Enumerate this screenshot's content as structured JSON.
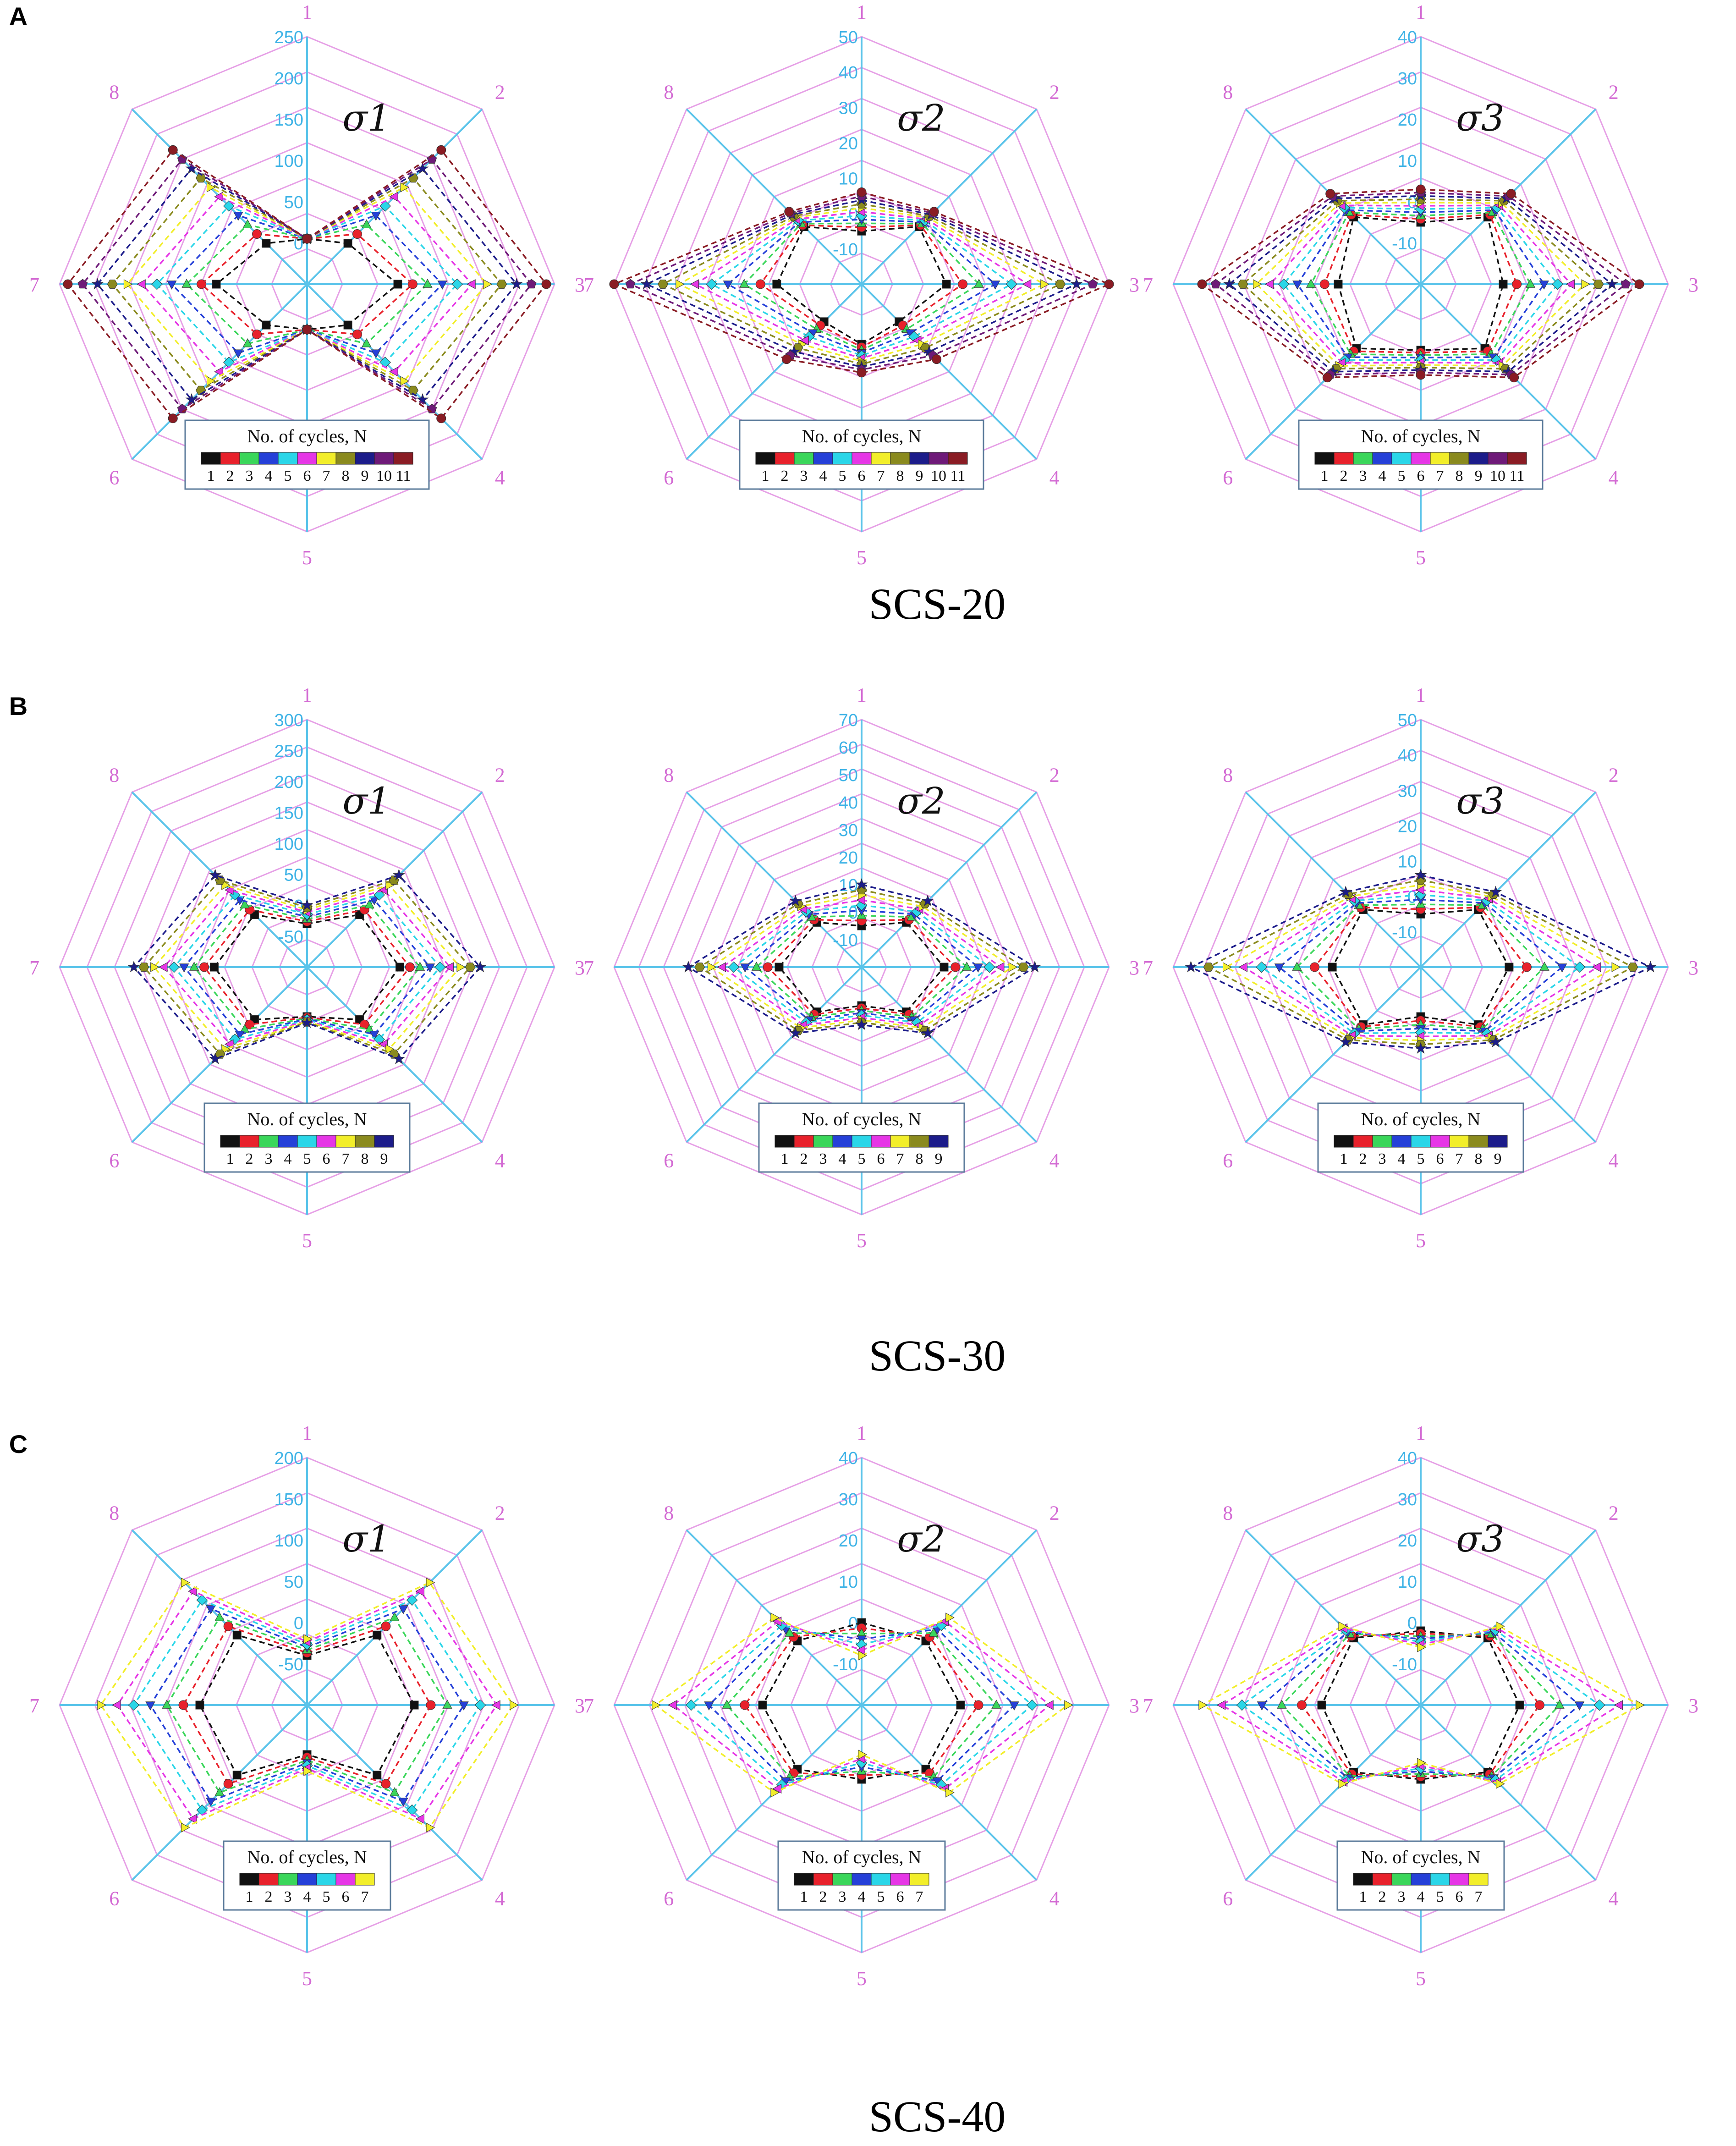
{
  "figure": {
    "legend_title": "No. of cycles, N",
    "spoke_labels": [
      "1",
      "2",
      "3",
      "4",
      "5",
      "6",
      "7",
      "8"
    ],
    "series_colors": [
      "#111111",
      "#e8212b",
      "#3ad65a",
      "#2540d8",
      "#2ad6e8",
      "#e636e6",
      "#f2ee2a",
      "#8a8a1e",
      "#1c1c8a",
      "#6e1a78",
      "#8a1c24"
    ],
    "panels": [
      {
        "letter": "A",
        "caption": "SCS-20"
      },
      {
        "letter": "B",
        "caption": "SCS-30"
      },
      {
        "letter": "C",
        "caption": "SCS-40"
      }
    ]
  },
  "chart_data": [
    {
      "type": "radar",
      "panel": "A",
      "title": "σ1",
      "ticks": [
        "0",
        "50",
        "100",
        "150",
        "200",
        "250"
      ],
      "rmin": -50,
      "rmax": 250,
      "series_count": 11,
      "series_labels": [
        "1",
        "2",
        "3",
        "4",
        "5",
        "6",
        "7",
        "8",
        "9",
        "10",
        "11"
      ],
      "first": [
        5,
        20,
        60,
        20,
        5,
        20,
        60,
        20
      ],
      "last": [
        5,
        180,
        240,
        180,
        5,
        180,
        240,
        180
      ]
    },
    {
      "type": "radar",
      "panel": "A",
      "title": "σ2",
      "ticks": [
        "-10",
        "0",
        "10",
        "20",
        "30",
        "40",
        "50"
      ],
      "rmin": -20,
      "rmax": 50,
      "series_count": 11,
      "series_labels": [
        "1",
        "2",
        "3",
        "4",
        "5",
        "6",
        "7",
        "8",
        "9",
        "10",
        "11"
      ],
      "first": [
        -5,
        3,
        4,
        -5,
        -3,
        -5,
        4,
        3
      ],
      "last": [
        6,
        9,
        50,
        10,
        5,
        10,
        50,
        9
      ]
    },
    {
      "type": "radar",
      "panel": "A",
      "title": "σ3",
      "ticks": [
        "-10",
        "0",
        "10",
        "20",
        "30",
        "40"
      ],
      "rmin": -20,
      "rmax": 40,
      "series_count": 11,
      "series_labels": [
        "1",
        "2",
        "3",
        "4",
        "5",
        "6",
        "7",
        "8",
        "9",
        "10",
        "11"
      ],
      "first": [
        -5,
        3,
        0,
        2,
        -4,
        2,
        0,
        3
      ],
      "last": [
        3,
        11,
        33,
        12,
        2,
        12,
        33,
        11
      ]
    },
    {
      "type": "radar",
      "panel": "B",
      "title": "σ1",
      "ticks": [
        "-50",
        "0",
        "50",
        "100",
        "150",
        "200",
        "250",
        "300"
      ],
      "rmin": -100,
      "rmax": 300,
      "series_count": 9,
      "series_labels": [
        "1",
        "2",
        "3",
        "4",
        "5",
        "6",
        "7",
        "8",
        "9"
      ],
      "first": [
        -30,
        20,
        50,
        20,
        -20,
        20,
        50,
        20
      ],
      "last": [
        0,
        110,
        180,
        110,
        -10,
        110,
        180,
        110
      ]
    },
    {
      "type": "radar",
      "panel": "B",
      "title": "σ2",
      "ticks": [
        "-10",
        "0",
        "10",
        "20",
        "30",
        "40",
        "50",
        "60",
        "70"
      ],
      "rmin": -20,
      "rmax": 70,
      "series_count": 9,
      "series_labels": [
        "1",
        "2",
        "3",
        "4",
        "5",
        "6",
        "7",
        "8",
        "9"
      ],
      "first": [
        -5,
        3,
        10,
        3,
        -6,
        3,
        10,
        3
      ],
      "last": [
        10,
        14,
        43,
        14,
        1,
        14,
        43,
        14
      ]
    },
    {
      "type": "radar",
      "panel": "B",
      "title": "σ3",
      "ticks": [
        "-10",
        "0",
        "10",
        "20",
        "30",
        "40",
        "50"
      ],
      "rmin": -20,
      "rmax": 50,
      "series_count": 9,
      "series_labels": [
        "1",
        "2",
        "3",
        "4",
        "5",
        "6",
        "7",
        "8",
        "9"
      ],
      "first": [
        -5,
        3,
        5,
        3,
        -6,
        3,
        5,
        3
      ],
      "last": [
        6,
        10,
        45,
        10,
        3,
        10,
        45,
        10
      ]
    },
    {
      "type": "radar",
      "panel": "C",
      "title": "σ1",
      "ticks": [
        "-50",
        "0",
        "50",
        "100",
        "150",
        "200"
      ],
      "rmin": -100,
      "rmax": 200,
      "series_count": 7,
      "series_labels": [
        "1",
        "2",
        "3",
        "4",
        "5",
        "6",
        "7"
      ],
      "first": [
        -40,
        20,
        30,
        20,
        -40,
        20,
        30,
        20
      ],
      "last": [
        -20,
        110,
        150,
        110,
        -20,
        110,
        150,
        110
      ]
    },
    {
      "type": "radar",
      "panel": "C",
      "title": "σ2",
      "ticks": [
        "-10",
        "0",
        "10",
        "20",
        "30",
        "40"
      ],
      "rmin": -20,
      "rmax": 40,
      "series_count": 7,
      "series_labels": [
        "1",
        "2",
        "3",
        "4",
        "5",
        "6",
        "7"
      ],
      "first": [
        0,
        2,
        4,
        2,
        -2,
        2,
        4,
        2
      ],
      "last": [
        -8,
        10,
        30,
        10,
        -8,
        10,
        30,
        10
      ]
    },
    {
      "type": "radar",
      "panel": "C",
      "title": "σ3",
      "ticks": [
        "-10",
        "0",
        "10",
        "20",
        "30",
        "40"
      ],
      "rmin": -20,
      "rmax": 40,
      "series_count": 7,
      "series_labels": [
        "1",
        "2",
        "3",
        "4",
        "5",
        "6",
        "7"
      ],
      "first": [
        -2,
        3,
        4,
        3,
        -2,
        3,
        4,
        3
      ],
      "last": [
        -6,
        7,
        33,
        7,
        -6,
        7,
        33,
        7
      ]
    }
  ]
}
